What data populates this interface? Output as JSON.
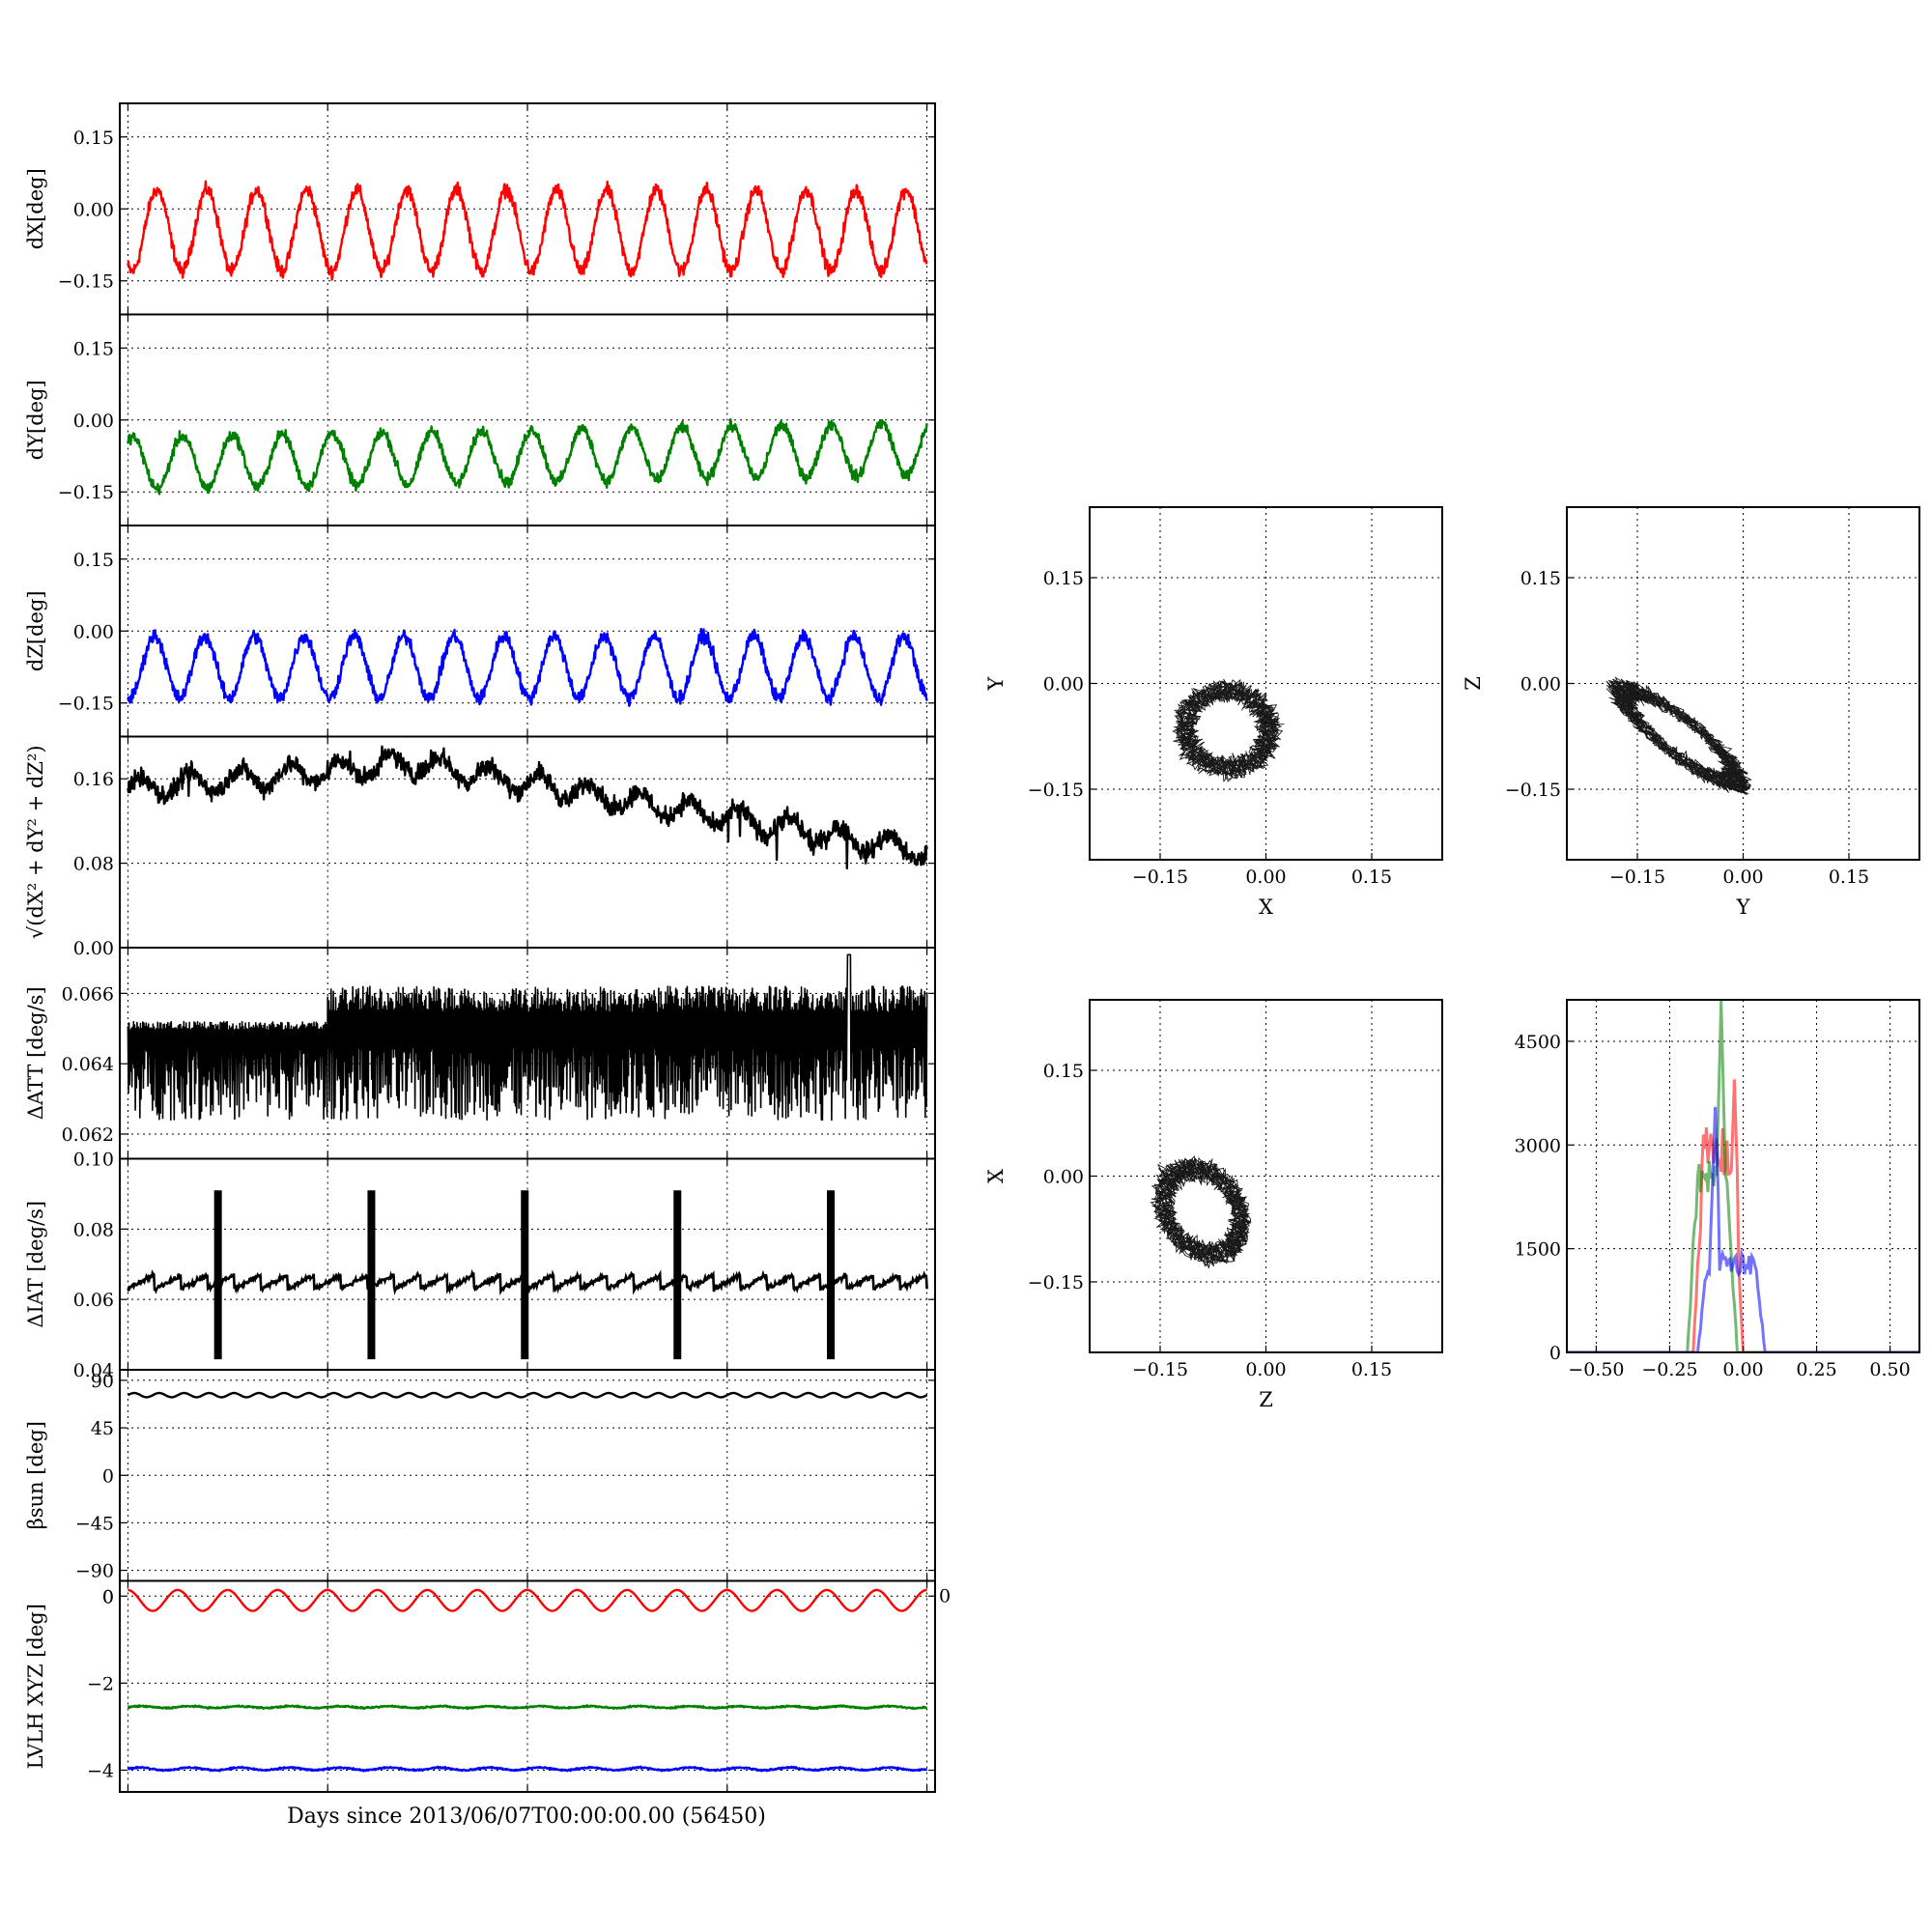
{
  "figure": {
    "xlabel": "Days since 2013/06/07T00:00:00.00 (56450)"
  },
  "chart_data": [
    {
      "id": "dX",
      "type": "line",
      "ylabel": "dX[deg]",
      "ylim": [
        -0.22,
        0.22
      ],
      "yticks": [
        0.15,
        0.0,
        -0.15
      ],
      "ytick_labels": [
        "0.15",
        "0.00",
        "−0.15"
      ],
      "grid": true,
      "color": "#ff0000",
      "series": [
        {
          "wave": {
            "mean": -0.045,
            "amplitude": 0.085,
            "cycles": 16,
            "phase": 4.2,
            "noise": 0.012,
            "drift": 0.0
          }
        }
      ]
    },
    {
      "id": "dY",
      "type": "line",
      "ylabel": "dY[deg]",
      "ylim": [
        -0.22,
        0.22
      ],
      "yticks": [
        0.15,
        0.0,
        -0.15
      ],
      "ytick_labels": [
        "0.15",
        "0.00",
        "−0.15"
      ],
      "grid": true,
      "color": "#008000",
      "series": [
        {
          "wave": {
            "mean": -0.09,
            "amplitude": 0.055,
            "cycles": 16,
            "phase": 1.0,
            "noise": 0.01,
            "drift": 0.03
          }
        }
      ]
    },
    {
      "id": "dZ",
      "type": "line",
      "ylabel": "dZ[deg]",
      "ylim": [
        -0.22,
        0.22
      ],
      "yticks": [
        0.15,
        0.0,
        -0.15
      ],
      "ytick_labels": [
        "0.15",
        "0.00",
        "−0.15"
      ],
      "grid": true,
      "color": "#0000ff",
      "series": [
        {
          "wave": {
            "mean": -0.075,
            "amplitude": 0.065,
            "cycles": 16,
            "phase": 4.5,
            "noise": 0.012,
            "drift": 0.0
          }
        }
      ]
    },
    {
      "id": "dR",
      "type": "line",
      "ylabel": "√(dX² + dY² + dZ²)",
      "ylim": [
        0.0,
        0.2
      ],
      "yticks": [
        0.16,
        0.08,
        0.0
      ],
      "ytick_labels": [
        "0.16",
        "0.08",
        "0.00"
      ],
      "grid": true,
      "color": "#000000",
      "series": [
        {
          "profile": {
            "start": 0.15,
            "peak": 0.175,
            "end": 0.09,
            "noise": 0.008
          }
        }
      ]
    },
    {
      "id": "dATT",
      "type": "line",
      "ylabel": "ΔATT [deg/s]",
      "ylim": [
        0.0613,
        0.0673
      ],
      "yticks": [
        0.066,
        0.064,
        0.062
      ],
      "ytick_labels": [
        "0.066",
        "0.064",
        "0.062"
      ],
      "grid": true,
      "color": "#000000",
      "series": [
        {
          "band": {
            "center": 0.0647,
            "low": 0.0624,
            "high_early": 0.0652,
            "high_late": 0.0662,
            "step_day": 0.25
          }
        }
      ]
    },
    {
      "id": "dIAT",
      "type": "line",
      "ylabel": "ΔIAT [deg/s]",
      "ylim": [
        0.04,
        0.1
      ],
      "yticks": [
        0.1,
        0.08,
        0.06,
        0.04
      ],
      "ytick_labels": [
        "0.10",
        "0.08",
        "0.06",
        "0.04"
      ],
      "grid": true,
      "color": "#000000",
      "series": [
        {
          "sawtooth": {
            "low": 0.063,
            "high": 0.067,
            "teeth": 30,
            "spikes_at": [
              0.113,
              0.305,
              0.497,
              0.688,
              0.88
            ],
            "spike_low": 0.043,
            "spike_high": 0.091
          }
        }
      ]
    },
    {
      "id": "beta",
      "type": "line",
      "ylabel": "βsun [deg]",
      "ylim": [
        -100,
        100
      ],
      "yticks": [
        90,
        45,
        0,
        -45,
        -90
      ],
      "ytick_labels": [
        "90",
        "45",
        "0",
        "−45",
        "−90"
      ],
      "grid": true,
      "color": "#000000",
      "series": [
        {
          "wave": {
            "mean": 76,
            "amplitude": 2,
            "cycles": 32,
            "phase": 0.0,
            "noise": 0.0,
            "drift": 0.0
          }
        }
      ]
    },
    {
      "id": "lvlh",
      "type": "line",
      "ylabel": "LVLH XYZ [deg]",
      "ylim": [
        -4.5,
        0.35
      ],
      "yticks": [
        0,
        -2,
        -4
      ],
      "ytick_labels": [
        "0",
        "−2",
        "−4"
      ],
      "grid": true,
      "extra_tick_labels": {
        "left_top": "0",
        "right_top": "0"
      },
      "series": [
        {
          "color": "#ff0000",
          "wave": {
            "mean": -0.1,
            "amplitude": 0.24,
            "cycles": 16,
            "phase": 1.6,
            "noise": 0.0,
            "drift": 0.0
          }
        },
        {
          "color": "#008000",
          "wave": {
            "mean": -2.55,
            "amplitude": 0.02,
            "cycles": 16,
            "phase": 0.0,
            "noise": 0.015,
            "drift": 0.0
          }
        },
        {
          "color": "#0000ff",
          "wave": {
            "mean": -3.97,
            "amplitude": 0.03,
            "cycles": 16,
            "phase": 0.0,
            "noise": 0.015,
            "drift": 0.0
          }
        }
      ]
    },
    {
      "id": "scatter_xy",
      "type": "scatter",
      "xlabel": "X",
      "ylabel": "Y",
      "xlim": [
        -0.25,
        0.25
      ],
      "ylim": [
        -0.25,
        0.25
      ],
      "ticks": [
        -0.15,
        0.0,
        0.15
      ],
      "tick_labels": [
        "−0.15",
        "0.00",
        "0.15"
      ],
      "grid": true,
      "loop": {
        "cx": -0.055,
        "cy": -0.065,
        "rx": 0.06,
        "ry": 0.055,
        "tilt": -10,
        "turns": 16
      }
    },
    {
      "id": "scatter_yz",
      "type": "scatter",
      "xlabel": "Y",
      "ylabel": "Z",
      "xlim": [
        -0.25,
        0.25
      ],
      "ylim": [
        -0.25,
        0.25
      ],
      "ticks": [
        -0.15,
        0.0,
        0.15
      ],
      "tick_labels": [
        "−0.15",
        "0.00",
        "0.15"
      ],
      "grid": true,
      "loop": {
        "cx": -0.09,
        "cy": -0.075,
        "rx": 0.1,
        "ry": 0.025,
        "tilt": -38,
        "turns": 16
      }
    },
    {
      "id": "scatter_zx",
      "type": "scatter",
      "xlabel": "Z",
      "ylabel": "X",
      "xlim": [
        -0.25,
        0.25
      ],
      "ylim": [
        -0.25,
        0.25
      ],
      "ticks": [
        -0.15,
        0.0,
        0.15
      ],
      "tick_labels": [
        "−0.15",
        "0.00",
        "0.15"
      ],
      "grid": true,
      "loop": {
        "cx": -0.09,
        "cy": -0.05,
        "rx": 0.065,
        "ry": 0.05,
        "tilt": -55,
        "turns": 16
      }
    },
    {
      "id": "histogram",
      "type": "histogram",
      "xlim": [
        -0.6,
        0.6
      ],
      "ylim": [
        0,
        5100
      ],
      "xticks": [
        -0.5,
        -0.25,
        0.0,
        0.25,
        0.5
      ],
      "xtick_labels": [
        "−0.50",
        "−0.25",
        "0.00",
        "0.25",
        "0.50"
      ],
      "yticks": [
        0,
        1500,
        3000,
        4500
      ],
      "ytick_labels": [
        "0",
        "1500",
        "3000",
        "4500"
      ],
      "grid": true,
      "series": [
        {
          "color": "#ff0000",
          "low": -0.17,
          "high": 0.0,
          "level": 3100,
          "peak_x": -0.03,
          "peak_y": 3950
        },
        {
          "color": "#008000",
          "low": -0.19,
          "high": -0.02,
          "level": 2700,
          "peak_x": -0.075,
          "peak_y": 5100
        },
        {
          "color": "#0000ff",
          "low": -0.155,
          "high": 0.075,
          "level": 1400,
          "peak_x": -0.095,
          "peak_y": 3550
        }
      ]
    }
  ]
}
